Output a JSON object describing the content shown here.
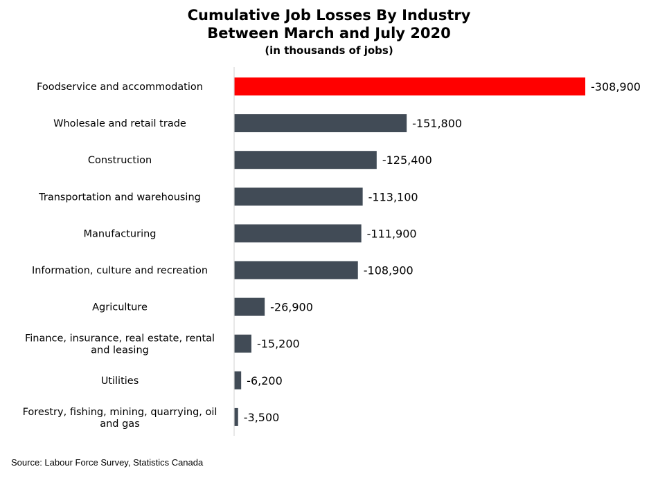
{
  "chart_data": {
    "type": "bar",
    "orientation": "horizontal",
    "title": "Cumulative Job Losses By Industry",
    "title_line2": "Between March and July 2020",
    "subtitle": "(in thousands of jobs)",
    "categories": [
      "Foodservice and accommodation",
      "Wholesale and retail trade",
      "Construction",
      "Transportation and warehousing",
      "Manufacturing",
      "Information, culture and recreation",
      "Agriculture",
      "Finance, insurance, real estate, rental and leasing",
      "Utilities",
      "Forestry, fishing, mining, quarrying, oil and gas"
    ],
    "category_lines": [
      [
        "Foodservice and accommodation"
      ],
      [
        "Wholesale and retail trade"
      ],
      [
        "Construction"
      ],
      [
        "Transportation and warehousing"
      ],
      [
        "Manufacturing"
      ],
      [
        "Information, culture and recreation"
      ],
      [
        "Agriculture"
      ],
      [
        "Finance, insurance, real estate, rental",
        "and leasing"
      ],
      [
        "Utilities"
      ],
      [
        "Forestry, fishing, mining, quarrying, oil",
        "and gas"
      ]
    ],
    "values": [
      -308900,
      -151800,
      -125400,
      -113100,
      -111900,
      -108900,
      -26900,
      -15200,
      -6200,
      -3500
    ],
    "data_labels": [
      "-308,900",
      "-151,800",
      "-125,400",
      "-113,100",
      "-111,900",
      "-108,900",
      "-26,900",
      "-15,200",
      "-6,200",
      "-3,500"
    ],
    "colors": [
      "#ff0000",
      "#414b56",
      "#414b56",
      "#414b56",
      "#414b56",
      "#414b56",
      "#414b56",
      "#414b56",
      "#414b56",
      "#414b56"
    ],
    "axis_color": "#d9d9d9",
    "grid": false,
    "legend": "none"
  },
  "source": "Source: Labour Force Survey, Statistics Canada"
}
